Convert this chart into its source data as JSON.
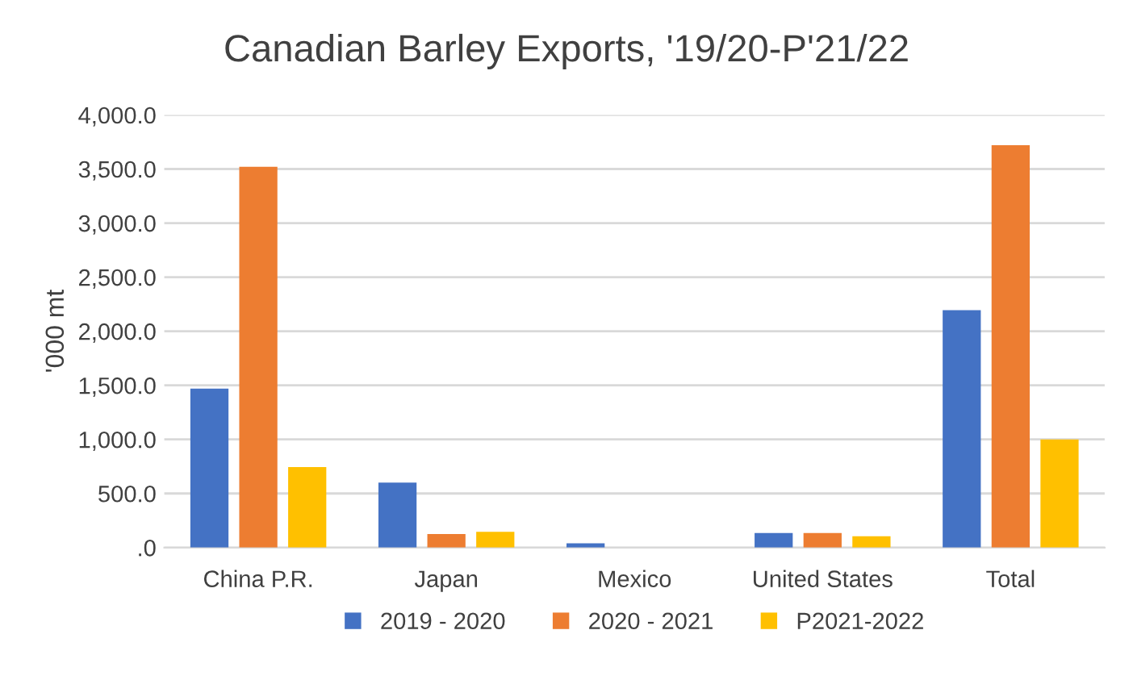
{
  "chart_data": {
    "type": "bar",
    "title": "Canadian Barley Exports, '19/20-P'21/22",
    "ylabel": "'000 mt",
    "categories": [
      "China P.R.",
      "Japan",
      "Mexico",
      "United States",
      "Total"
    ],
    "series": [
      {
        "name": "2019 - 2020",
        "color": "#4472c4",
        "values": [
          1470,
          600,
          40,
          135,
          2195
        ]
      },
      {
        "name": "2020 - 2021",
        "color": "#ed7d31",
        "values": [
          3520,
          125,
          0,
          135,
          3720
        ]
      },
      {
        "name": "P2021-2022",
        "color": "#ffc000",
        "values": [
          745,
          145,
          0,
          105,
          1000
        ]
      }
    ],
    "ylim": [
      0,
      4000
    ],
    "yticks": [
      {
        "value": 0,
        "label": ".0"
      },
      {
        "value": 500,
        "label": "500.0"
      },
      {
        "value": 1000,
        "label": "1,000.0"
      },
      {
        "value": 1500,
        "label": "1,500.0"
      },
      {
        "value": 2000,
        "label": "2,000.0"
      },
      {
        "value": 2500,
        "label": "2,500.0"
      },
      {
        "value": 3000,
        "label": "3,000.0"
      },
      {
        "value": 3500,
        "label": "3,500.0"
      },
      {
        "value": 4000,
        "label": "4,000.0"
      }
    ],
    "grid": "y",
    "legend": "bottom"
  }
}
